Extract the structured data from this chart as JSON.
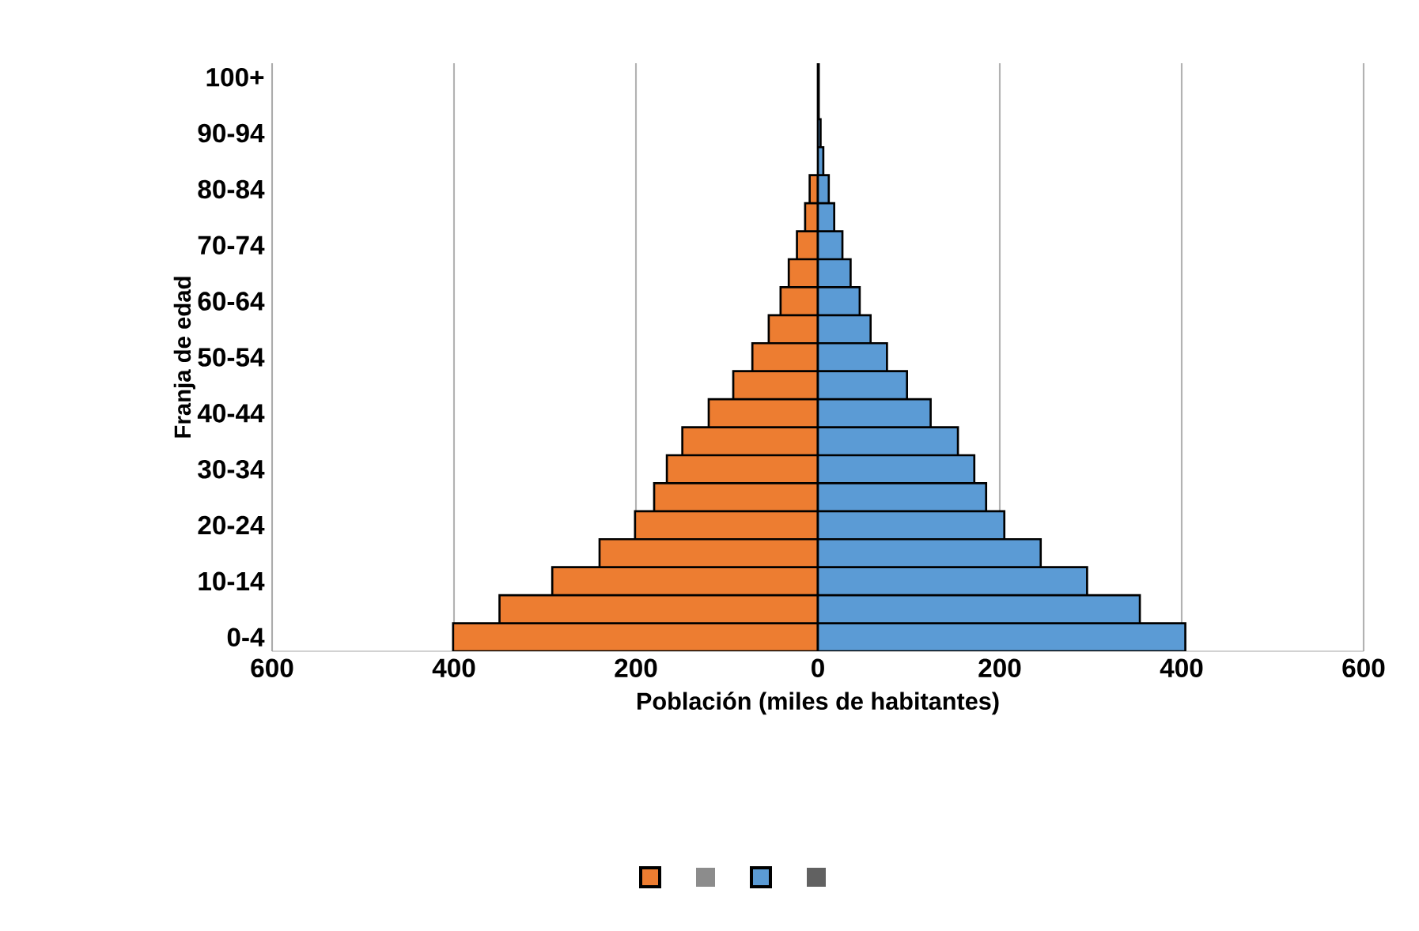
{
  "chart_data": {
    "type": "bar",
    "orientation": "horizontal",
    "xlabel": "Población (miles de habitantes)",
    "ylabel": "Franja de edad",
    "categories": [
      "100+",
      null,
      "90-94",
      null,
      "80-84",
      null,
      "70-74",
      null,
      "60-64",
      null,
      "50-54",
      null,
      "40-44",
      null,
      "30-34",
      null,
      "20-24",
      null,
      "10-14",
      null,
      "0-4"
    ],
    "series": [
      {
        "color": "#ed7d31",
        "values": [
          null,
          null,
          null,
          null,
          -9,
          -14,
          -23,
          -32,
          -41,
          -54,
          -72,
          -93,
          -120,
          -149,
          -166,
          -180,
          -201,
          -240,
          -292,
          -350,
          -401
        ]
      },
      {
        "color": "#5b9bd5",
        "values": [
          1,
          1,
          3,
          6,
          12,
          18,
          27,
          36,
          46,
          58,
          76,
          98,
          124,
          154,
          172,
          185,
          205,
          245,
          296,
          354,
          404
        ]
      }
    ],
    "xlim": [
      -600,
      600
    ],
    "xticks": [
      {
        "value": -600,
        "label": "600"
      },
      {
        "value": -400,
        "label": "400"
      },
      {
        "value": -200,
        "label": "200"
      },
      0,
      200,
      400,
      600
    ],
    "grid": "x",
    "stacked": true
  }
}
